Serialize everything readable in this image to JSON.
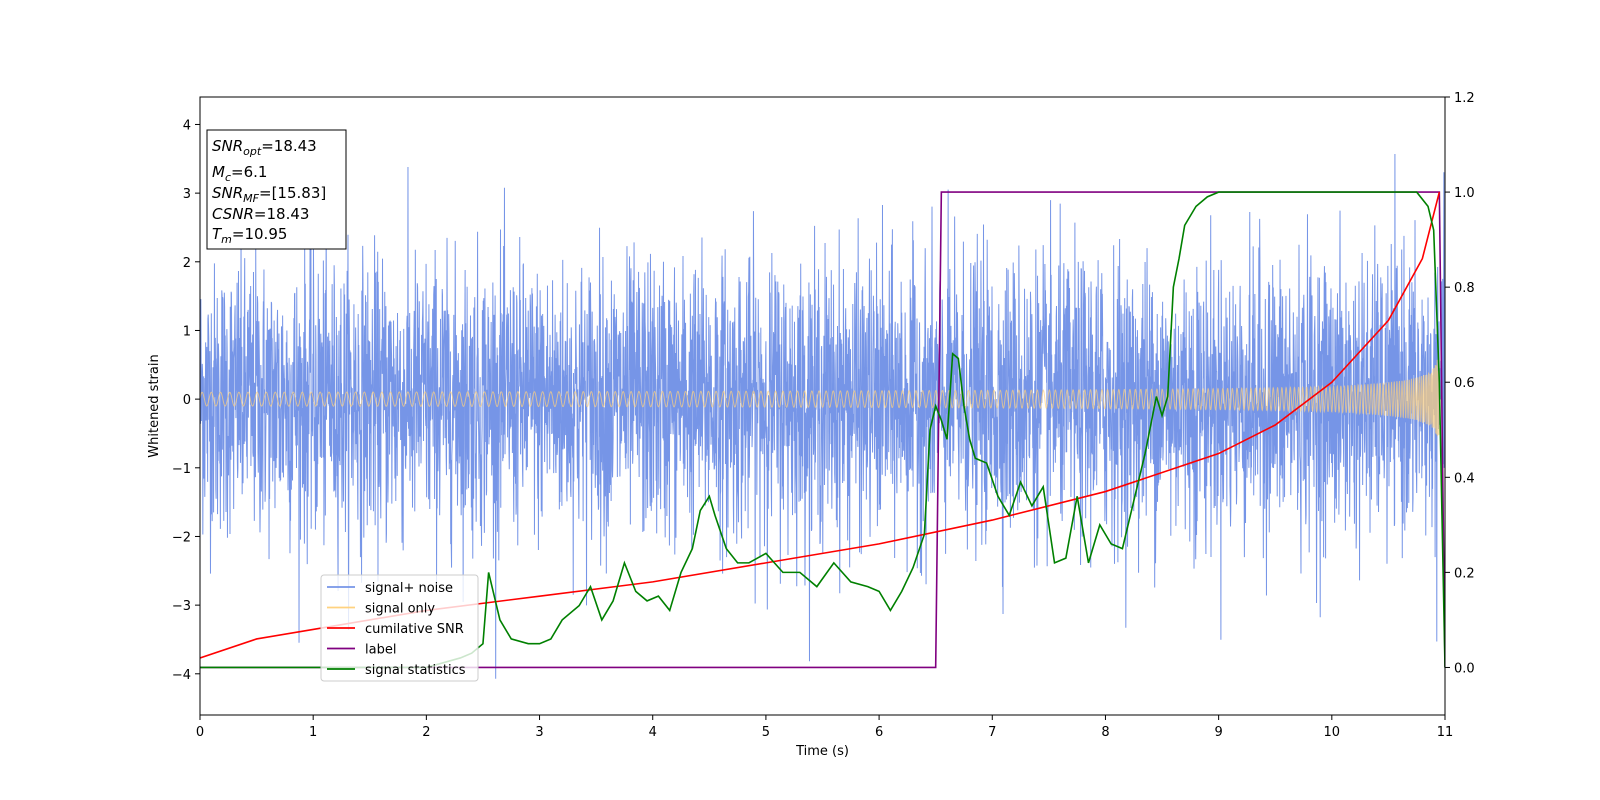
{
  "chart_data": {
    "type": "line",
    "xlabel": "Time (s)",
    "ylabel": "Whitened strain",
    "xlim": [
      0,
      11
    ],
    "ylim_left": [
      -4.6,
      4.4
    ],
    "ylim_right": [
      -0.1,
      1.2
    ],
    "xticks": [
      "0",
      "1",
      "2",
      "3",
      "4",
      "5",
      "6",
      "7",
      "8",
      "9",
      "10",
      "11"
    ],
    "yticks_left": [
      "−4",
      "−3",
      "−2",
      "−1",
      "0",
      "1",
      "2",
      "3",
      "4"
    ],
    "yticks_right": [
      "0.0",
      "0.2",
      "0.4",
      "0.6",
      "0.8",
      "1.0",
      "1.2"
    ],
    "grid": false,
    "legend_position": "lower-left",
    "legend": [
      {
        "name": "signal+ noise",
        "color": "#6f8fe6"
      },
      {
        "name": "signal only",
        "color": "#ffd27f"
      },
      {
        "name": "cumilative SNR",
        "color": "#ff0000"
      },
      {
        "name": "label",
        "color": "#800080"
      },
      {
        "name": "signal statistics",
        "color": "#008000"
      }
    ],
    "info_box": [
      {
        "main": "SNR",
        "sub": "opt",
        "rest": "=18.43"
      },
      {
        "main": "M",
        "sub": "c",
        "rest": "=6.1"
      },
      {
        "main": "SNR",
        "sub": "MF",
        "rest": "=[15.83]"
      },
      {
        "main": "CSNR",
        "sub": "",
        "rest": "=18.43"
      },
      {
        "main": "T",
        "sub": "m",
        "rest": "=10.95"
      }
    ],
    "series": [
      {
        "name": "signal+ noise",
        "axis": "left",
        "color": "#6f8fe6",
        "description_range": [
          -4.2,
          4.0
        ],
        "typical_amplitude": 2.0
      },
      {
        "name": "signal only",
        "axis": "left",
        "color": "#ffd27f",
        "start_amplitude": 0.1,
        "end_amplitude": 1.7,
        "merger_time": 10.95
      },
      {
        "name": "cumilative SNR",
        "axis": "right",
        "color": "#ff0000",
        "x": [
          0,
          0.5,
          1,
          2,
          3,
          4,
          5,
          6,
          7,
          8,
          9,
          9.5,
          10,
          10.5,
          10.8,
          10.95
        ],
        "y": [
          0.02,
          0.06,
          0.08,
          0.12,
          0.15,
          0.18,
          0.22,
          0.26,
          0.31,
          0.37,
          0.45,
          0.51,
          0.6,
          0.73,
          0.86,
          1.0
        ]
      },
      {
        "name": "label",
        "axis": "right",
        "color": "#800080",
        "x": [
          0,
          6.5,
          6.55,
          10.95,
          11.0
        ],
        "y": [
          0,
          0,
          1,
          1,
          0
        ]
      },
      {
        "name": "signal statistics",
        "axis": "right",
        "color": "#008000",
        "x": [
          0,
          0.3,
          0.8,
          1.5,
          2.0,
          2.3,
          2.4,
          2.5,
          2.55,
          2.65,
          2.75,
          2.9,
          3.0,
          3.1,
          3.2,
          3.35,
          3.45,
          3.55,
          3.65,
          3.75,
          3.85,
          3.95,
          4.05,
          4.15,
          4.25,
          4.35,
          4.42,
          4.5,
          4.55,
          4.65,
          4.75,
          4.85,
          5.0,
          5.15,
          5.3,
          5.45,
          5.6,
          5.75,
          5.9,
          6.0,
          6.1,
          6.2,
          6.3,
          6.4,
          6.45,
          6.5,
          6.55,
          6.6,
          6.65,
          6.7,
          6.75,
          6.8,
          6.85,
          6.95,
          7.05,
          7.15,
          7.25,
          7.35,
          7.45,
          7.55,
          7.65,
          7.75,
          7.85,
          7.95,
          8.05,
          8.15,
          8.25,
          8.35,
          8.45,
          8.5,
          8.55,
          8.6,
          8.65,
          8.7,
          8.8,
          8.9,
          9.0,
          9.3,
          9.7,
          10.1,
          10.5,
          10.75,
          10.85,
          10.9,
          10.95,
          11.0
        ],
        "y": [
          0.0,
          0.0,
          0.0,
          0.0,
          0.0,
          0.02,
          0.03,
          0.05,
          0.2,
          0.1,
          0.06,
          0.05,
          0.05,
          0.06,
          0.1,
          0.13,
          0.17,
          0.1,
          0.14,
          0.22,
          0.16,
          0.14,
          0.15,
          0.12,
          0.2,
          0.25,
          0.33,
          0.36,
          0.32,
          0.25,
          0.22,
          0.22,
          0.24,
          0.2,
          0.2,
          0.17,
          0.22,
          0.18,
          0.17,
          0.16,
          0.12,
          0.16,
          0.21,
          0.28,
          0.5,
          0.55,
          0.52,
          0.48,
          0.66,
          0.65,
          0.55,
          0.48,
          0.44,
          0.43,
          0.36,
          0.32,
          0.39,
          0.34,
          0.38,
          0.22,
          0.23,
          0.36,
          0.22,
          0.3,
          0.26,
          0.25,
          0.35,
          0.45,
          0.57,
          0.53,
          0.57,
          0.8,
          0.86,
          0.93,
          0.97,
          0.99,
          1.0,
          1.0,
          1.0,
          1.0,
          1.0,
          1.0,
          0.97,
          0.92,
          0.6,
          0.0
        ]
      }
    ]
  }
}
